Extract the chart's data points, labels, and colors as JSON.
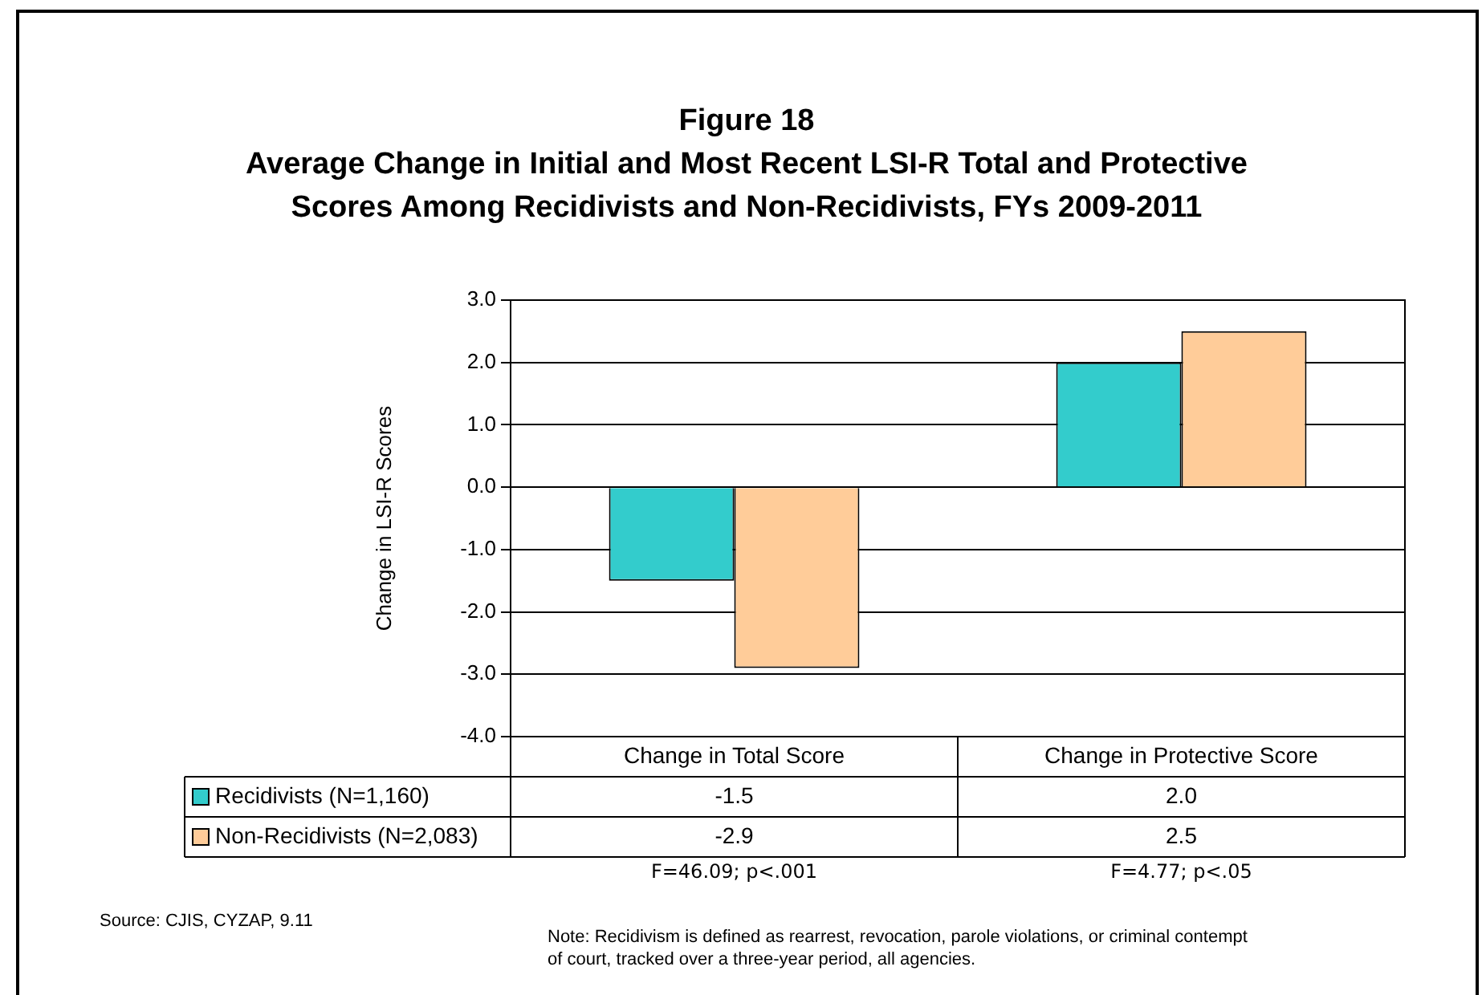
{
  "chart_data": {
    "type": "bar",
    "title": "Figure 18",
    "subtitle": "Average Change in Initial and Most Recent LSI-R Total and Protective Scores Among Recidivists and Non-Recidivists, FYs 2009-2011",
    "ylabel": "Change in LSI-R Scores",
    "categories": [
      "Change in Total Score",
      "Change in Protective Score"
    ],
    "series": [
      {
        "name": "Recidivists (N=1,160)",
        "color": "#33cccc",
        "values": [
          -1.5,
          2.0
        ],
        "value_labels": [
          "-1.5",
          "2.0"
        ]
      },
      {
        "name": "Non-Recidivists (N=2,083)",
        "color": "#ffcc99",
        "values": [
          -2.9,
          2.5
        ],
        "value_labels": [
          "-2.9",
          "2.5"
        ]
      }
    ],
    "ylim": [
      -4,
      3
    ],
    "yticks": [
      {
        "value": -4,
        "label": "-4.0"
      },
      {
        "value": -3,
        "label": "-3.0"
      },
      {
        "value": -2,
        "label": "-2.0"
      },
      {
        "value": -1,
        "label": "-1.0"
      },
      {
        "value": 0,
        "label": "0.0"
      },
      {
        "value": 1,
        "label": "1.0"
      },
      {
        "value": 2,
        "label": "2.0"
      },
      {
        "value": 3,
        "label": "3.0"
      }
    ],
    "grid": "y",
    "legend": "bottom left",
    "annotations": [
      "F=46.09; p<.001",
      "F=4.77; p<.05",
      "Source: CJIS, CYZAP, 9.11",
      "Note: Recidivism is defined as rearrest, revocation, parole violations, or criminal contempt of court, tracked over a three-year period, all agencies."
    ]
  }
}
